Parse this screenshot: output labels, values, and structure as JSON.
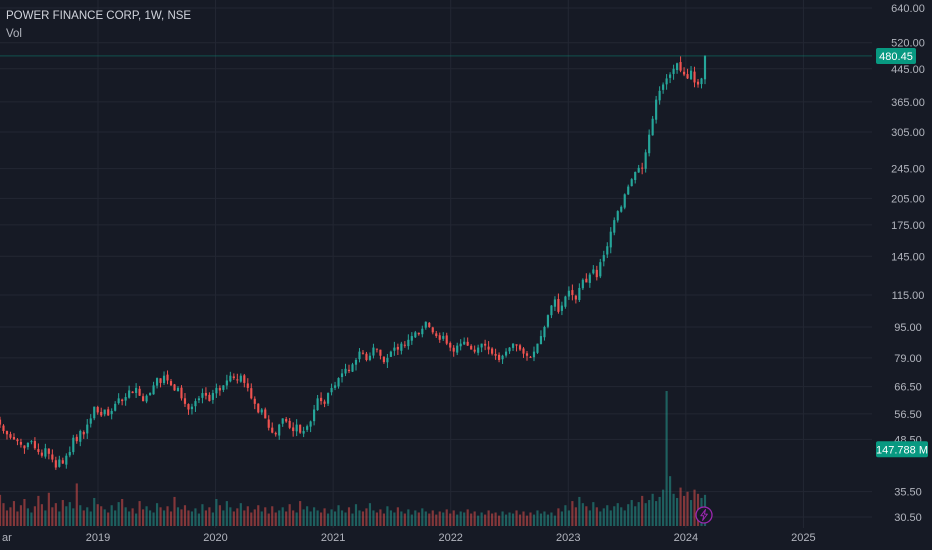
{
  "legend": {
    "symbol_line": "POWER FINANCE CORP, 1W, NSE",
    "volume_label": "Vol"
  },
  "colors": {
    "background": "#161a25",
    "grid": "#232733",
    "up": "#26a69a",
    "down": "#ef5350",
    "axis_text": "#b2b5be",
    "price_tag": "#089981",
    "lightning_ring": "#9c27b0"
  },
  "price_tag": {
    "value": "480.45",
    "numeric": 480.45
  },
  "volume_tag": {
    "value": "147.788 M",
    "numeric": 147.788
  },
  "lightning_icon": "lightning-icon",
  "chart_data": {
    "type": "candlestick",
    "title": "POWER FINANCE CORP, 1W, NSE",
    "y_scale": "log",
    "y_tick_labels": [
      "640.00",
      "520.00",
      "445.00",
      "365.00",
      "305.00",
      "245.00",
      "205.00",
      "175.00",
      "145.00",
      "115.00",
      "95.00",
      "79.00",
      "66.50",
      "56.50",
      "48.50",
      "35.50",
      "30.50"
    ],
    "x_tick_labels": [
      "ar",
      "2019",
      "2020",
      "2021",
      "2022",
      "2023",
      "2024",
      "2025"
    ],
    "x_range": [
      "2018-03",
      "2025-08"
    ],
    "y_range": [
      28.5,
      700
    ],
    "volume_axis_max_millions": 260,
    "legend_placement": "top-left",
    "grid": true,
    "series": [
      {
        "name": "Vol",
        "type": "volume",
        "values_millions": [
          60,
          44,
          30,
          36,
          48,
          28,
          40,
          52,
          34,
          26,
          38,
          58,
          42,
          30,
          64,
          36,
          44,
          28,
          50,
          38,
          46,
          34,
          82,
          40,
          30,
          36,
          28,
          54,
          42,
          38,
          32,
          26,
          40,
          30,
          46,
          52,
          36,
          28,
          34,
          24,
          48,
          32,
          38,
          30,
          26,
          44,
          36,
          30,
          38,
          28,
          56,
          36,
          32,
          40,
          30,
          28,
          34,
          24,
          42,
          30,
          36,
          26,
          52,
          40,
          30,
          48,
          36,
          28,
          34,
          44,
          30,
          38,
          26,
          32,
          40,
          28,
          36,
          24,
          38,
          26,
          30,
          36,
          28,
          42,
          30,
          26,
          48,
          32,
          38,
          28,
          36,
          30,
          26,
          34,
          24,
          32,
          28,
          40,
          30,
          26,
          36,
          24,
          42,
          30,
          28,
          34,
          44,
          30,
          26,
          32,
          24,
          38,
          30,
          26,
          36,
          28,
          24,
          32,
          22,
          30,
          26,
          34,
          28,
          24,
          30,
          22,
          28,
          26,
          32,
          24,
          30,
          22,
          28,
          26,
          32,
          24,
          28,
          20,
          26,
          22,
          30,
          24,
          26,
          20,
          28,
          22,
          26,
          24,
          30,
          22,
          28,
          20,
          26,
          22,
          30,
          24,
          28,
          22,
          26,
          20,
          34,
          28,
          40,
          30,
          48,
          36,
          56,
          44,
          38,
          30,
          46,
          36,
          28,
          34,
          40,
          30,
          38,
          44,
          36,
          30,
          42,
          50,
          38,
          46,
          58,
          44,
          50,
          62,
          48,
          56,
          70,
          260,
          96,
          62,
          54,
          74,
          58,
          66,
          50,
          70,
          62,
          54,
          60,
          48,
          56,
          44,
          66,
          52,
          40,
          58,
          46,
          32,
          148
        ]
      },
      {
        "name": "price",
        "type": "candlestick",
        "unit": "INR",
        "closes": [
          53,
          51,
          50,
          49,
          48.5,
          48,
          47,
          46,
          47.5,
          48,
          46,
          45,
          44,
          46,
          44.5,
          43,
          41,
          43,
          42,
          44,
          45,
          49,
          48,
          51,
          50,
          53,
          55,
          59,
          57,
          56,
          58,
          56,
          57.5,
          60,
          62,
          61,
          62.5,
          65,
          64,
          66,
          63,
          61,
          63,
          64,
          67,
          70,
          68,
          71,
          69,
          67,
          65,
          66,
          62,
          60,
          58,
          59,
          61,
          62,
          64,
          63,
          61,
          64,
          66,
          65,
          67,
          69,
          71,
          70,
          69,
          71,
          68,
          66,
          62,
          60,
          57,
          58,
          55,
          52,
          50.5,
          50,
          53,
          55,
          54,
          52,
          51,
          53,
          50.5,
          51,
          52.5,
          54,
          58,
          62,
          61,
          60,
          64,
          66,
          67,
          70,
          72,
          74,
          73,
          76,
          78,
          82,
          81,
          78,
          80,
          84,
          83,
          80,
          77,
          79,
          82,
          84,
          83,
          86,
          85,
          88,
          90,
          92,
          91,
          94,
          98,
          95,
          92,
          90,
          88,
          90,
          86,
          84,
          82,
          85,
          86,
          87,
          85,
          83,
          82,
          84,
          86,
          85,
          83,
          81,
          80,
          78,
          80,
          82,
          84,
          86,
          85,
          83,
          81,
          80,
          79,
          82,
          86,
          90,
          95,
          102,
          108,
          112,
          104,
          108,
          114,
          118,
          115,
          112,
          120,
          126,
          124,
          130,
          134,
          128,
          140,
          146,
          154,
          168,
          180,
          190,
          195,
          210,
          220,
          230,
          240,
          246,
          245,
          270,
          300,
          330,
          370,
          390,
          405,
          420,
          430,
          445,
          460,
          440,
          430,
          420,
          440,
          410,
          405,
          420,
          480.45
        ]
      }
    ]
  }
}
